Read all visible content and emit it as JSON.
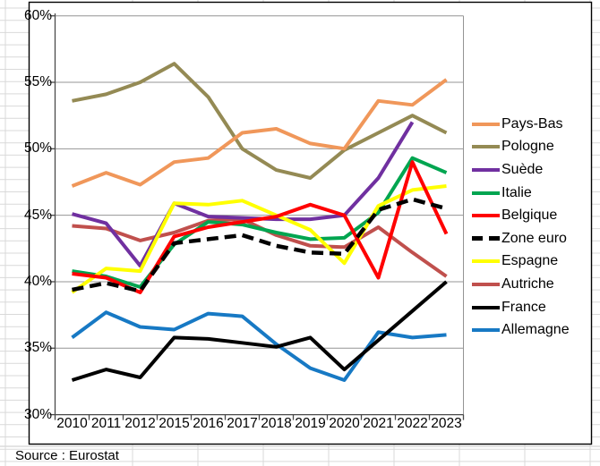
{
  "chart_data": {
    "type": "line",
    "title": "",
    "x_categories": [
      "2010",
      "2011",
      "2012",
      "2015",
      "2016",
      "2017",
      "2018",
      "2019",
      "2020",
      "2021",
      "2022",
      "2023"
    ],
    "y_axis": {
      "min": 30,
      "max": 60,
      "step": 5,
      "unit": "%",
      "tick_labels": [
        "60%",
        "55%",
        "50%",
        "45%",
        "40%",
        "35%",
        "30%"
      ]
    },
    "grid": true,
    "legend_position": "right",
    "series": [
      {
        "name": "Pays-Bas",
        "color": "#F0975A",
        "dashed": false,
        "values": [
          47.2,
          48.2,
          47.3,
          49.0,
          49.3,
          51.2,
          51.5,
          50.4,
          50.0,
          53.6,
          53.3,
          55.2
        ]
      },
      {
        "name": "Pologne",
        "color": "#948A54",
        "dashed": false,
        "values": [
          53.6,
          54.1,
          55.0,
          56.4,
          53.9,
          50.0,
          48.4,
          47.8,
          49.9,
          51.2,
          52.5,
          51.2
        ]
      },
      {
        "name": "Suède",
        "color": "#7030A0",
        "dashed": false,
        "values": [
          45.1,
          44.4,
          41.2,
          45.9,
          44.9,
          44.8,
          44.7,
          44.7,
          45.0,
          47.8,
          52.0,
          null
        ]
      },
      {
        "name": "Italie",
        "color": "#00A550",
        "dashed": false,
        "values": [
          40.8,
          40.4,
          39.6,
          42.8,
          44.5,
          44.3,
          43.7,
          43.2,
          43.3,
          45.2,
          49.3,
          48.2
        ]
      },
      {
        "name": "Belgique",
        "color": "#FF0000",
        "dashed": false,
        "values": [
          40.6,
          40.3,
          39.2,
          43.4,
          44.1,
          44.5,
          44.9,
          45.8,
          45.0,
          40.3,
          49.0,
          43.6
        ]
      },
      {
        "name": "Zone euro",
        "color": "#000000",
        "dashed": true,
        "values": [
          39.4,
          39.9,
          39.3,
          42.9,
          43.2,
          43.5,
          42.7,
          42.2,
          42.1,
          45.4,
          46.2,
          45.5
        ]
      },
      {
        "name": "Espagne",
        "color": "#FFFF00",
        "dashed": false,
        "values": [
          39.2,
          41.0,
          40.8,
          45.9,
          45.8,
          46.1,
          45.0,
          43.9,
          41.4,
          45.7,
          46.9,
          47.2
        ]
      },
      {
        "name": "Autriche",
        "color": "#C0504D",
        "dashed": false,
        "values": [
          44.2,
          44.0,
          43.1,
          43.7,
          44.6,
          44.7,
          43.5,
          42.7,
          42.6,
          44.1,
          42.2,
          40.4
        ]
      },
      {
        "name": "France",
        "color": "#000000",
        "dashed": false,
        "values": [
          32.6,
          33.4,
          32.8,
          35.8,
          35.7,
          35.4,
          35.1,
          35.8,
          33.4,
          35.6,
          37.8,
          40.0
        ]
      },
      {
        "name": "Allemagne",
        "color": "#1779C4",
        "dashed": false,
        "values": [
          35.8,
          37.7,
          36.6,
          36.4,
          37.6,
          37.4,
          35.3,
          33.5,
          32.6,
          36.2,
          35.8,
          36.0
        ]
      }
    ]
  },
  "source": {
    "label": "Source : Eurostat"
  },
  "colors": {
    "sheet_grid": "#d9d9d9",
    "chart_border": "#000000",
    "plot_gridline": "#949494",
    "axis_line": "#4a4a4a",
    "background": "#ffffff"
  }
}
